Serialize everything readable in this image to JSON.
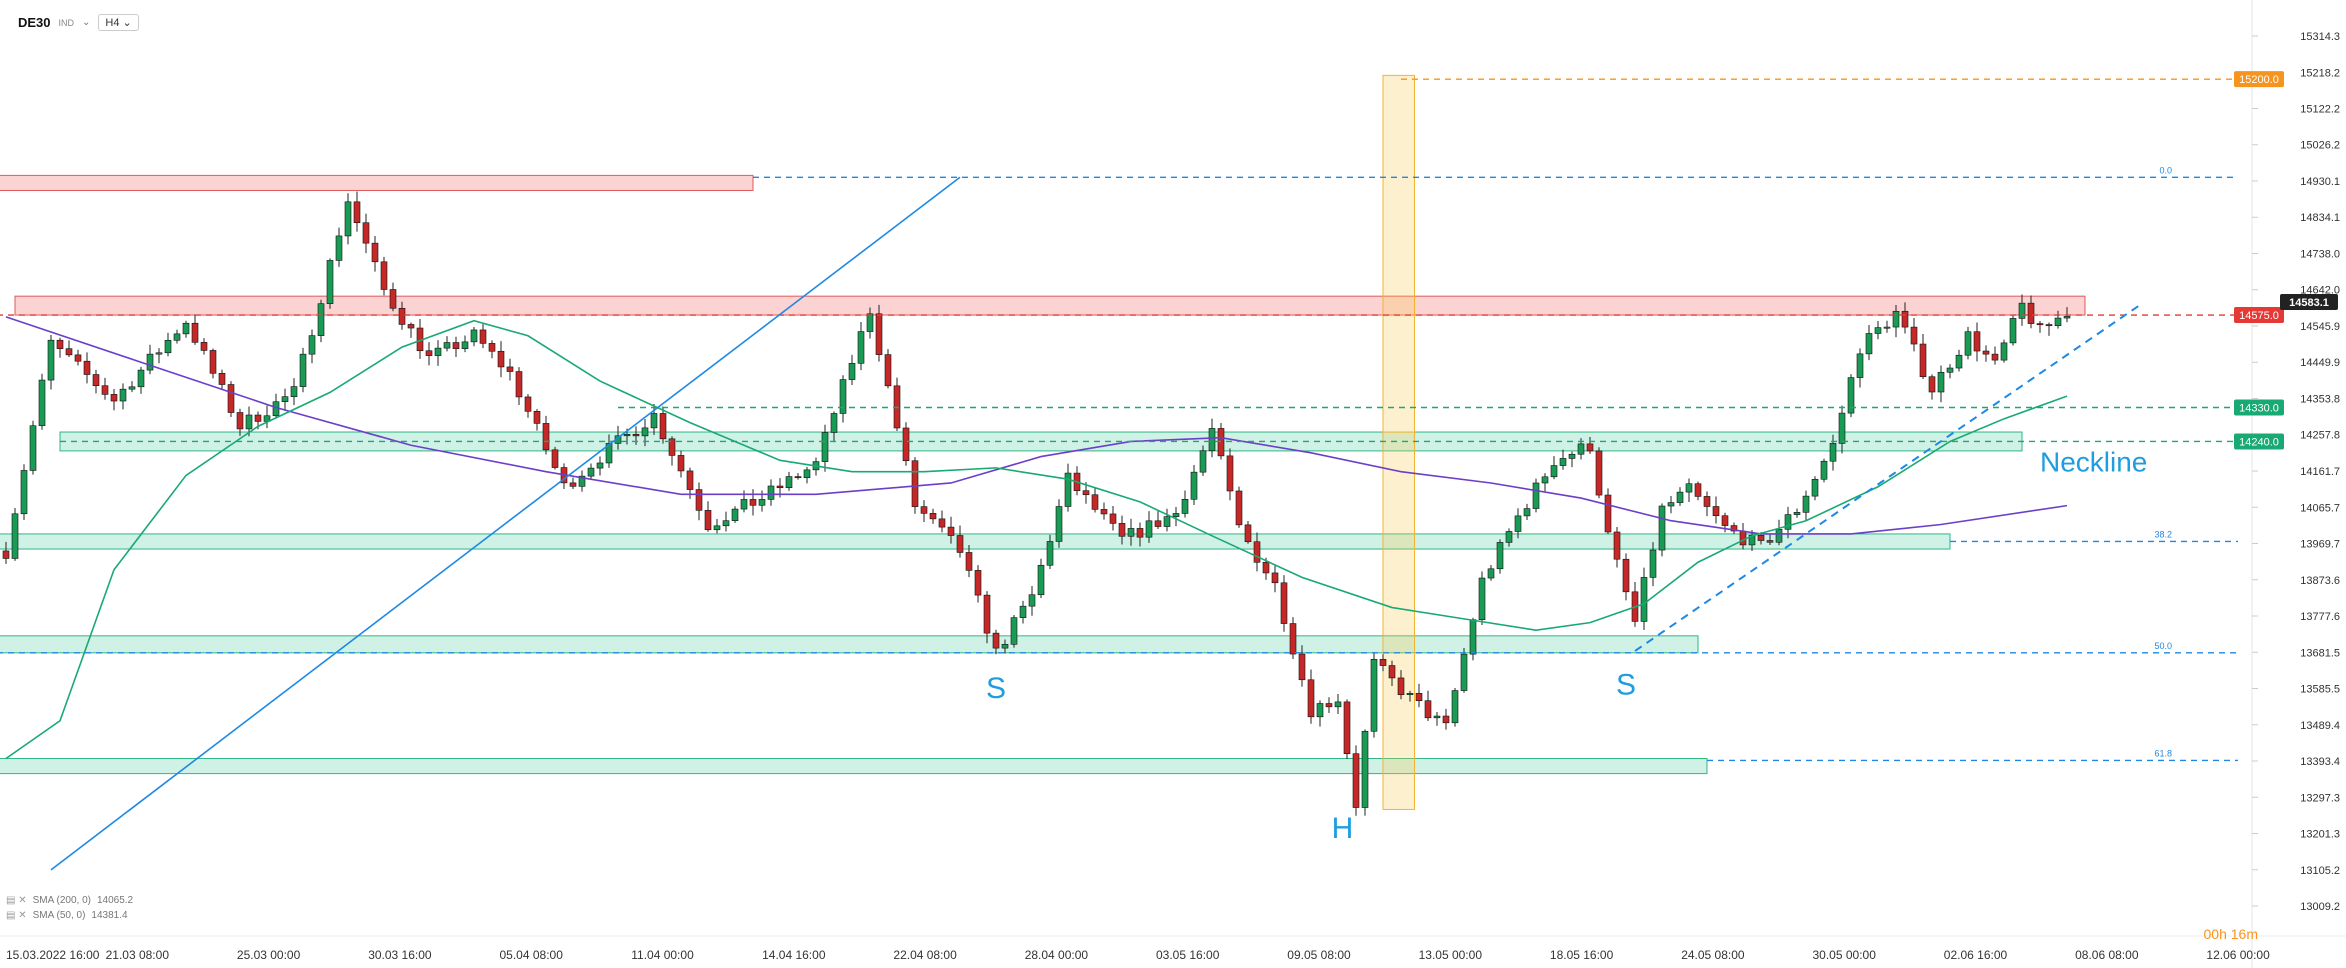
{
  "toolbar": {
    "symbol": "DE30",
    "symbol_suffix": "IND",
    "timeframe": "H4"
  },
  "timer": "00h 16m",
  "indicators": [
    {
      "label": "SMA (200, 0)",
      "value": "14065.2",
      "color": "#6b3fc9"
    },
    {
      "label": "SMA (50, 0)",
      "value": "14381.4",
      "color": "#19a974"
    }
  ],
  "annotations": {
    "shoulder_left": "S",
    "head": "H",
    "shoulder_right": "S",
    "neckline": "Neckline"
  },
  "price_tags": {
    "last": "14583.1",
    "red_line": "14575.0",
    "target": "15200.0",
    "green_1": "14330.0",
    "green_2": "14240.0"
  },
  "fib_labels": [
    "0.0",
    "38.2",
    "50.0",
    "61.8"
  ],
  "chart_data": {
    "type": "candlestick",
    "ylim": [
      13009.2,
      15314.3
    ],
    "y_ticks": [
      "15314.3",
      "15218.2",
      "15122.2",
      "15026.2",
      "14930.1",
      "14834.1",
      "14738.0",
      "14642.0",
      "14545.9",
      "14449.9",
      "14353.8",
      "14257.8",
      "14161.7",
      "14065.7",
      "13969.7",
      "13873.6",
      "13777.6",
      "13681.5",
      "13585.5",
      "13489.4",
      "13393.4",
      "13297.3",
      "13201.3",
      "13105.2",
      "13009.2"
    ],
    "x_ticks": [
      "15.03.2022  16:00",
      "21.03  08:00",
      "25.03  00:00",
      "30.03  16:00",
      "05.04  08:00",
      "11.04  00:00",
      "14.04  16:00",
      "22.04  08:00",
      "28.04  00:00",
      "03.05  16:00",
      "09.05  08:00",
      "13.05  00:00",
      "18.05  16:00",
      "24.05  08:00",
      "30.05  00:00",
      "02.06  16:00",
      "08.06  08:00",
      "12.06  00:00"
    ],
    "candle_count": 230,
    "close_anchors": [
      [
        0,
        13950
      ],
      [
        5,
        14500
      ],
      [
        12,
        14350
      ],
      [
        20,
        14560
      ],
      [
        26,
        14280
      ],
      [
        32,
        14370
      ],
      [
        38,
        14880
      ],
      [
        42,
        14640
      ],
      [
        47,
        14460
      ],
      [
        52,
        14520
      ],
      [
        56,
        14420
      ],
      [
        62,
        14120
      ],
      [
        66,
        14200
      ],
      [
        72,
        14310
      ],
      [
        78,
        14020
      ],
      [
        84,
        14090
      ],
      [
        90,
        14180
      ],
      [
        96,
        14590
      ],
      [
        101,
        14070
      ],
      [
        106,
        13950
      ],
      [
        110,
        13680
      ],
      [
        114,
        13830
      ],
      [
        118,
        14140
      ],
      [
        124,
        13980
      ],
      [
        130,
        14050
      ],
      [
        134,
        14270
      ],
      [
        137,
        14010
      ],
      [
        141,
        13860
      ],
      [
        145,
        13530
      ],
      [
        148,
        13560
      ],
      [
        150,
        13280
      ],
      [
        152,
        13650
      ],
      [
        156,
        13560
      ],
      [
        160,
        13480
      ],
      [
        164,
        13870
      ],
      [
        168,
        14040
      ],
      [
        172,
        14190
      ],
      [
        176,
        14230
      ],
      [
        178,
        13990
      ],
      [
        181,
        13760
      ],
      [
        184,
        14060
      ],
      [
        187,
        14110
      ],
      [
        191,
        14010
      ],
      [
        195,
        13960
      ],
      [
        199,
        14060
      ],
      [
        203,
        14230
      ],
      [
        206,
        14490
      ],
      [
        210,
        14580
      ],
      [
        214,
        14380
      ],
      [
        218,
        14520
      ],
      [
        221,
        14440
      ],
      [
        224,
        14600
      ],
      [
        226,
        14530
      ],
      [
        229,
        14583
      ]
    ],
    "series": [
      {
        "name": "SMA (200, 0)",
        "points": [
          [
            0,
            14570
          ],
          [
            15,
            14450
          ],
          [
            30,
            14330
          ],
          [
            45,
            14230
          ],
          [
            60,
            14160
          ],
          [
            75,
            14100
          ],
          [
            90,
            14100
          ],
          [
            105,
            14130
          ],
          [
            115,
            14200
          ],
          [
            125,
            14240
          ],
          [
            135,
            14250
          ],
          [
            145,
            14210
          ],
          [
            155,
            14160
          ],
          [
            165,
            14130
          ],
          [
            175,
            14090
          ],
          [
            185,
            14030
          ],
          [
            195,
            13995
          ],
          [
            205,
            13995
          ],
          [
            215,
            14020
          ],
          [
            229,
            14070
          ]
        ]
      },
      {
        "name": "SMA (50, 0)",
        "points": [
          [
            0,
            13400
          ],
          [
            6,
            13500
          ],
          [
            12,
            13900
          ],
          [
            20,
            14150
          ],
          [
            28,
            14280
          ],
          [
            36,
            14370
          ],
          [
            44,
            14490
          ],
          [
            52,
            14560
          ],
          [
            58,
            14520
          ],
          [
            66,
            14400
          ],
          [
            76,
            14290
          ],
          [
            86,
            14190
          ],
          [
            94,
            14160
          ],
          [
            102,
            14160
          ],
          [
            110,
            14170
          ],
          [
            118,
            14140
          ],
          [
            126,
            14080
          ],
          [
            134,
            13990
          ],
          [
            144,
            13880
          ],
          [
            154,
            13800
          ],
          [
            162,
            13770
          ],
          [
            170,
            13740
          ],
          [
            176,
            13760
          ],
          [
            182,
            13810
          ],
          [
            188,
            13920
          ],
          [
            194,
            13990
          ],
          [
            200,
            14030
          ],
          [
            208,
            14120
          ],
          [
            216,
            14240
          ],
          [
            222,
            14300
          ],
          [
            229,
            14360
          ]
        ]
      }
    ],
    "zones_red": [
      {
        "y0": 14905,
        "y1": 14945,
        "x0": -1,
        "x1": 83
      },
      {
        "y0": 14575,
        "y1": 14625,
        "x0": 1,
        "x1": 231
      }
    ],
    "zones_green": [
      {
        "y0": 14215,
        "y1": 14265,
        "x0": 6,
        "x1": 224
      },
      {
        "y0": 13955,
        "y1": 13995,
        "x0": -1,
        "x1": 216
      },
      {
        "y0": 13680,
        "y1": 13725,
        "x0": -1,
        "x1": 188
      },
      {
        "y0": 13360,
        "y1": 13400,
        "x0": -1,
        "x1": 189
      }
    ],
    "hlines": [
      {
        "y": 14940,
        "x0": 83,
        "color": "#1e88e5",
        "label": "0.0"
      },
      {
        "y": 14575,
        "x0": -1,
        "color": "#e53935",
        "label": ""
      },
      {
        "y": 15200,
        "x0": 155,
        "color": "#f7941d",
        "label": ""
      },
      {
        "y": 14330,
        "x0": 68,
        "color": "#19a974",
        "label": ""
      },
      {
        "y": 14240,
        "x0": 6,
        "color": "#19a974",
        "label": ""
      },
      {
        "y": 13975,
        "x0": 216,
        "color": "#1e88e5",
        "label": "38.2"
      },
      {
        "y": 13680,
        "x0": -1,
        "color": "#1e88e5",
        "label": "50.0"
      },
      {
        "y": 13395,
        "x0": 189,
        "color": "#1e88e5",
        "label": "61.8"
      }
    ],
    "trend_line": {
      "x0": 5,
      "y0": 13105,
      "x1": 106,
      "y1": 14940
    },
    "neckline": {
      "x0": 181,
      "y0": 13685,
      "x1": 237,
      "y1": 14600
    },
    "boxes_yellow": [
      {
        "x0": 153,
        "x1": 156.5,
        "y0": 13265,
        "y1": 14265
      },
      {
        "x0": 153,
        "x1": 156.5,
        "y0": 14265,
        "y1": 15210
      }
    ]
  }
}
